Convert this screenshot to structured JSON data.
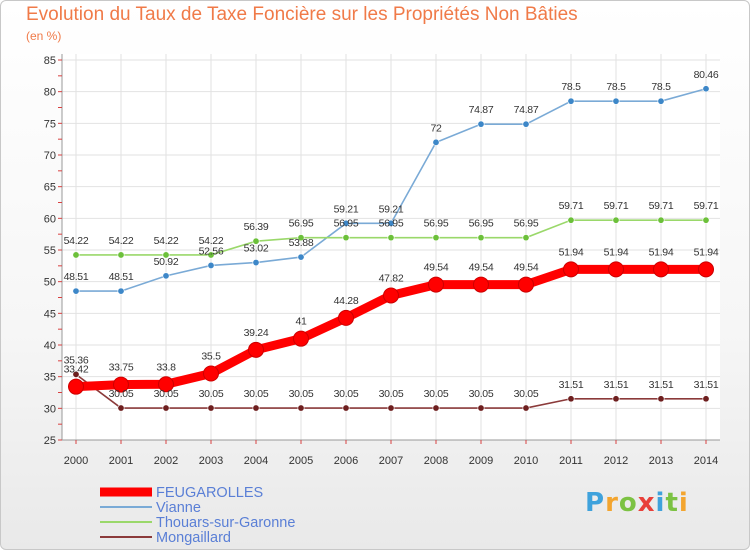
{
  "title": "Evolution du Taux de Taxe Foncière sur les Propriétés Non Bâties",
  "unit_label": "(en %)",
  "logo": {
    "text": "Proxiti",
    "colors": [
      "#3fa2dc",
      "#f3a52f",
      "#7cc243",
      "#e8403a",
      "#3fa2dc",
      "#7cc243",
      "#f3a52f"
    ]
  },
  "chart_data": {
    "type": "line",
    "x": [
      "2000",
      "2001",
      "2002",
      "2003",
      "2004",
      "2005",
      "2006",
      "2007",
      "2008",
      "2009",
      "2010",
      "2011",
      "2012",
      "2013",
      "2014"
    ],
    "ylim": [
      25,
      85
    ],
    "yticks": [
      25,
      30,
      35,
      40,
      45,
      50,
      55,
      60,
      65,
      70,
      75,
      80,
      85
    ],
    "grid": true,
    "legend_position": "bottom-left",
    "series": [
      {
        "name": "FEUGAROLLES",
        "color": "#ff0000",
        "emphasis": true,
        "values": [
          33.42,
          33.75,
          33.8,
          35.5,
          39.24,
          41,
          44.28,
          47.82,
          49.54,
          49.54,
          49.54,
          51.94,
          51.94,
          51.94,
          51.94
        ],
        "labels": [
          "33.42",
          "33.75",
          "33.8",
          "35.5",
          "39.24",
          "41",
          "44.28",
          "47.82",
          "49.54",
          "49.54",
          "49.54",
          "51.94",
          "51.94",
          "51.94",
          "51.94"
        ]
      },
      {
        "name": "Vianne",
        "color": "#7aaad6",
        "marker_color": "#3d87c8",
        "values": [
          48.51,
          48.51,
          50.92,
          52.56,
          53.02,
          53.88,
          59.21,
          59.21,
          72,
          74.87,
          74.87,
          78.5,
          78.5,
          78.5,
          80.46
        ],
        "labels": [
          "48.51",
          "48.51",
          "50.92",
          "52.56",
          "53.02",
          "53.88",
          "59.21",
          "59.21",
          "72",
          "74.87",
          "74.87",
          "78.5",
          "78.5",
          "78.5",
          "80.46"
        ]
      },
      {
        "name": "Thouars-sur-Garonne",
        "color": "#9ad86a",
        "marker_color": "#6cc03a",
        "values": [
          54.22,
          54.22,
          54.22,
          54.22,
          56.39,
          56.95,
          56.95,
          56.95,
          56.95,
          56.95,
          56.95,
          59.71,
          59.71,
          59.71,
          59.71
        ],
        "labels": [
          "54.22",
          "54.22",
          "54.22",
          "54.22",
          "56.39",
          "56.95",
          "56.95",
          "56.95",
          "56.95",
          "56.95",
          "56.95",
          "59.71",
          "59.71",
          "59.71",
          "59.71"
        ]
      },
      {
        "name": "Mongaillard",
        "color": "#8b3a3a",
        "marker_color": "#6e1f1f",
        "values": [
          35.36,
          30.05,
          30.05,
          30.05,
          30.05,
          30.05,
          30.05,
          30.05,
          30.05,
          30.05,
          30.05,
          31.51,
          31.51,
          31.51,
          31.51
        ],
        "labels": [
          "35.36",
          "30.05",
          "30.05",
          "30.05",
          "30.05",
          "30.05",
          "30.05",
          "30.05",
          "30.05",
          "30.05",
          "30.05",
          "31.51",
          "31.51",
          "31.51",
          "31.51"
        ]
      }
    ]
  }
}
